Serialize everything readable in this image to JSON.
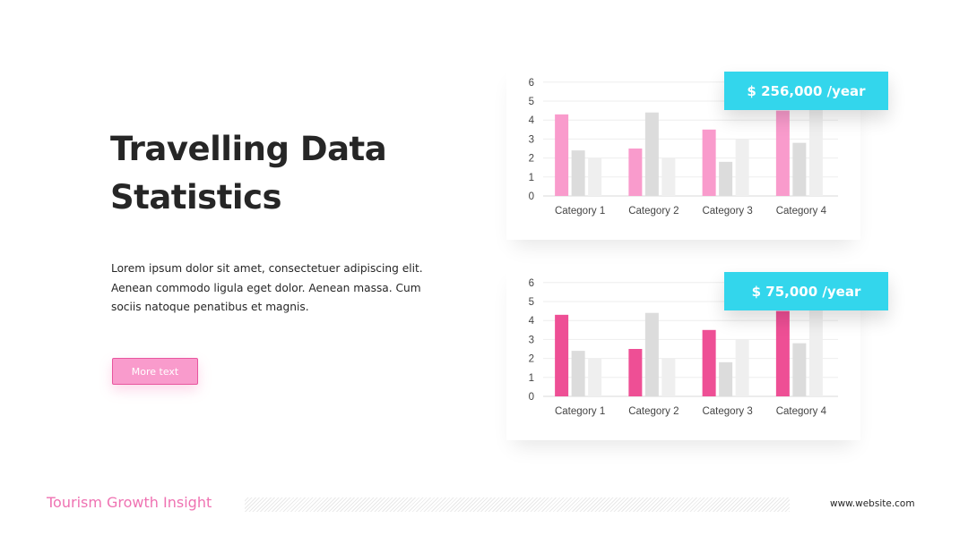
{
  "slide": {
    "title_line1": "Travelling Data",
    "title_line2": "Statistics",
    "body": "Lorem ipsum dolor sit amet, consectetuer adipiscing elit. Aenean commodo ligula eget dolor. Aenean massa. Cum sociis natoque penatibus et magnis.",
    "button_label": "More text"
  },
  "footer": {
    "brand": "Tourism Growth Insight",
    "website": "www.website.com"
  },
  "colors": {
    "pink_light": "#f99bcc",
    "pink_strong": "#ee4f95",
    "gray_mid": "#dcdcdc",
    "gray_light": "#efefef",
    "badge": "#33d6ec",
    "brand_text": "#ef72b2"
  },
  "chart_data": [
    {
      "type": "bar",
      "badge": "$ 256,000 /year",
      "categories": [
        "Category 1",
        "Category 2",
        "Category 3",
        "Category 4"
      ],
      "series": [
        {
          "values": [
            4.3,
            2.5,
            3.5,
            4.5
          ],
          "color": "#f99bcc"
        },
        {
          "values": [
            2.4,
            4.4,
            1.8,
            2.8
          ],
          "color": "#dcdcdc"
        },
        {
          "values": [
            2,
            2,
            3,
            5
          ],
          "color": "#efefef"
        }
      ],
      "ylim": [
        0,
        6
      ],
      "yticks": [
        "0",
        "1",
        "2",
        "3",
        "4",
        "5",
        "6"
      ],
      "grid": true
    },
    {
      "type": "bar",
      "badge": "$ 75,000 /year",
      "categories": [
        "Category 1",
        "Category 2",
        "Category 3",
        "Category 4"
      ],
      "series": [
        {
          "values": [
            4.3,
            2.5,
            3.5,
            4.5
          ],
          "color": "#ee4f95"
        },
        {
          "values": [
            2.4,
            4.4,
            1.8,
            2.8
          ],
          "color": "#dcdcdc"
        },
        {
          "values": [
            2,
            2,
            3,
            5
          ],
          "color": "#efefef"
        }
      ],
      "ylim": [
        0,
        6
      ],
      "yticks": [
        "0",
        "1",
        "2",
        "3",
        "4",
        "5",
        "6"
      ],
      "grid": true
    }
  ]
}
